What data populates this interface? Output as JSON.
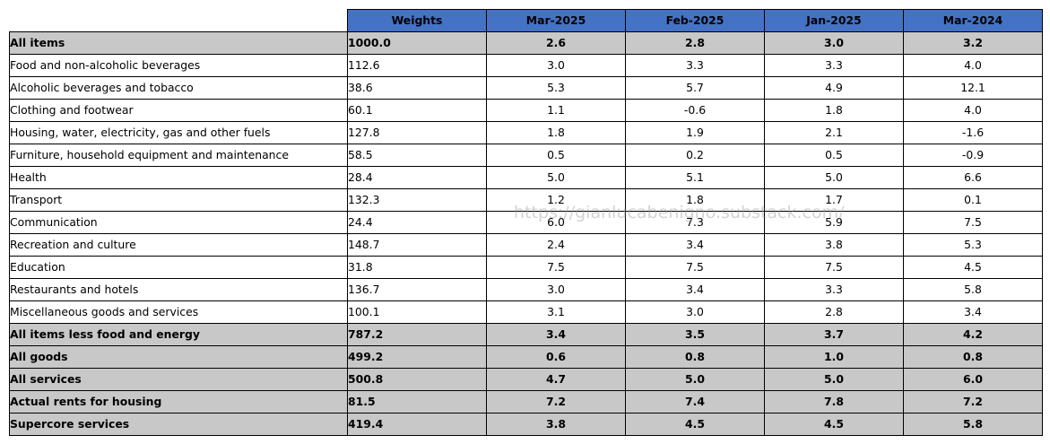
{
  "chart_data": {
    "type": "table",
    "columns": [
      "Weights",
      "Mar-2025",
      "Feb-2025",
      "Jan-2025",
      "Mar-2024"
    ],
    "rows": [
      {
        "label": "All items",
        "weight": "1000.0",
        "values": [
          "2.6",
          "2.8",
          "3.0",
          "3.2"
        ],
        "highlight": true
      },
      {
        "label": "Food and non-alcoholic beverages",
        "weight": "112.6",
        "values": [
          "3.0",
          "3.3",
          "3.3",
          "4.0"
        ],
        "highlight": false
      },
      {
        "label": "Alcoholic beverages and tobacco",
        "weight": "38.6",
        "values": [
          "5.3",
          "5.7",
          "4.9",
          "12.1"
        ],
        "highlight": false
      },
      {
        "label": "Clothing and footwear",
        "weight": "60.1",
        "values": [
          "1.1",
          "-0.6",
          "1.8",
          "4.0"
        ],
        "highlight": false
      },
      {
        "label": "Housing, water, electricity, gas and other fuels",
        "weight": "127.8",
        "values": [
          "1.8",
          "1.9",
          "2.1",
          "-1.6"
        ],
        "highlight": false
      },
      {
        "label": "Furniture, household equipment and maintenance",
        "weight": "58.5",
        "values": [
          "0.5",
          "0.2",
          "0.5",
          "-0.9"
        ],
        "highlight": false
      },
      {
        "label": "Health",
        "weight": "28.4",
        "values": [
          "5.0",
          "5.1",
          "5.0",
          "6.6"
        ],
        "highlight": false
      },
      {
        "label": "Transport",
        "weight": "132.3",
        "values": [
          "1.2",
          "1.8",
          "1.7",
          "0.1"
        ],
        "highlight": false
      },
      {
        "label": "Communication",
        "weight": "24.4",
        "values": [
          "6.0",
          "7.3",
          "5.9",
          "7.5"
        ],
        "highlight": false
      },
      {
        "label": "Recreation and culture",
        "weight": "148.7",
        "values": [
          "2.4",
          "3.4",
          "3.8",
          "5.3"
        ],
        "highlight": false
      },
      {
        "label": "Education",
        "weight": "31.8",
        "values": [
          "7.5",
          "7.5",
          "7.5",
          "4.5"
        ],
        "highlight": false
      },
      {
        "label": "Restaurants and hotels",
        "weight": "136.7",
        "values": [
          "3.0",
          "3.4",
          "3.3",
          "5.8"
        ],
        "highlight": false
      },
      {
        "label": "Miscellaneous goods and services",
        "weight": "100.1",
        "values": [
          "3.1",
          "3.0",
          "2.8",
          "3.4"
        ],
        "highlight": false
      },
      {
        "label": "All items less food and energy",
        "weight": "787.2",
        "values": [
          "3.4",
          "3.5",
          "3.7",
          "4.2"
        ],
        "highlight": true
      },
      {
        "label": "All goods",
        "weight": "499.2",
        "values": [
          "0.6",
          "0.8",
          "1.0",
          "0.8"
        ],
        "highlight": true
      },
      {
        "label": "All services",
        "weight": "500.8",
        "values": [
          "4.7",
          "5.0",
          "5.0",
          "6.0"
        ],
        "highlight": true
      },
      {
        "label": "Actual rents for housing",
        "weight": "81.5",
        "values": [
          "7.2",
          "7.4",
          "7.8",
          "7.2"
        ],
        "highlight": true
      },
      {
        "label": "Supercore services",
        "weight": "419.4",
        "values": [
          "3.8",
          "4.5",
          "4.5",
          "5.8"
        ],
        "highlight": true
      }
    ],
    "colors": {
      "header_background": "#4472c4",
      "header_text": "#ffffff",
      "highlight_background": "#c8c8c8",
      "border": "#000000"
    }
  },
  "watermark": "https://gianlucabenigno.substack.com/"
}
